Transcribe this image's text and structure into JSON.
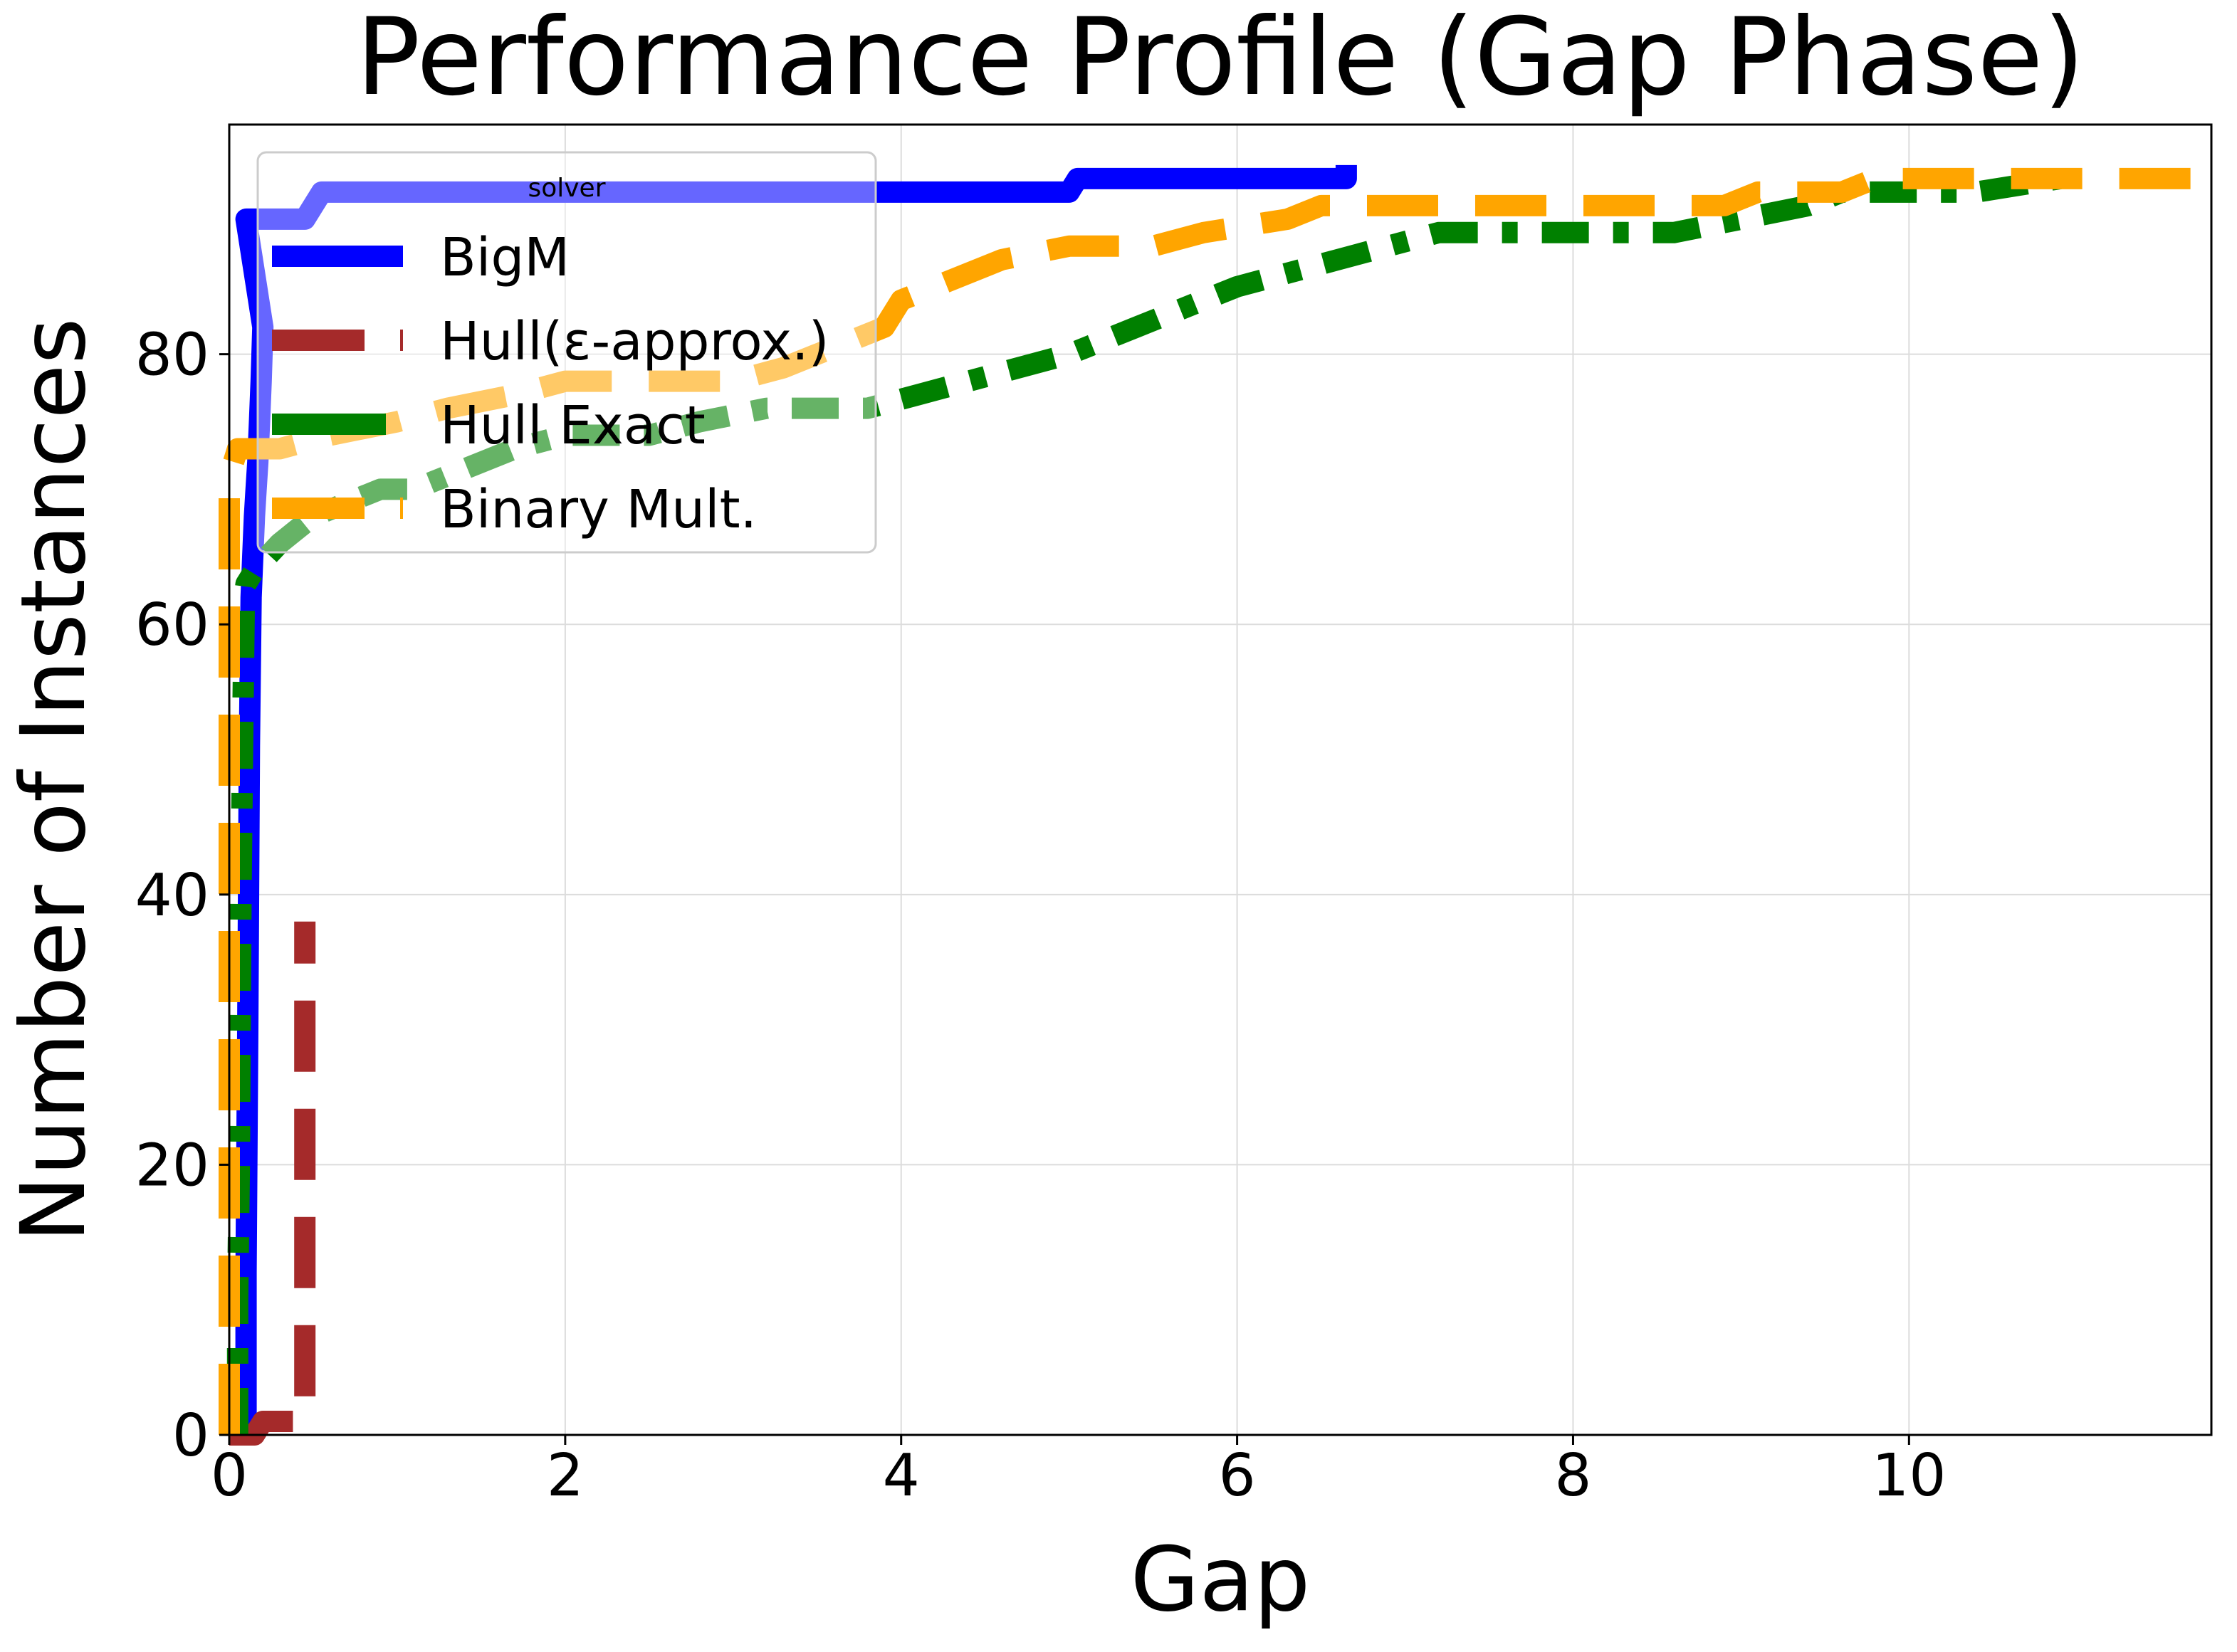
{
  "chart_data": {
    "type": "line",
    "title": "Performance Profile (Gap Phase)",
    "xlabel": "Gap",
    "ylabel": "Number of Instances",
    "xlim": [
      0,
      11.8
    ],
    "ylim": [
      0,
      97
    ],
    "xticks": [
      0,
      2,
      4,
      6,
      8,
      10
    ],
    "yticks": [
      0,
      20,
      40,
      60,
      80
    ],
    "grid": true,
    "legend": {
      "title": "solver",
      "placement": "top-left"
    },
    "series": [
      {
        "name": "BigM",
        "color": "#0000ff",
        "style": "solid",
        "points": [
          [
            0.1,
            0
          ],
          [
            0.1,
            12
          ],
          [
            0.11,
            30
          ],
          [
            0.12,
            51
          ],
          [
            0.13,
            62
          ],
          [
            0.14,
            65
          ],
          [
            0.15,
            68
          ],
          [
            0.16,
            70
          ],
          [
            0.17,
            72
          ],
          [
            0.18,
            75
          ],
          [
            0.19,
            78
          ],
          [
            0.2,
            82
          ],
          [
            0.1,
            90
          ],
          [
            0.45,
            90
          ],
          [
            0.5,
            91
          ],
          [
            0.55,
            92
          ],
          [
            5.0,
            92
          ],
          [
            5.05,
            93
          ],
          [
            6.65,
            93
          ],
          [
            6.65,
            94
          ]
        ]
      },
      {
        "name": "Hull(ε-approx.)",
        "color": "#a52a2a",
        "style": "dashed",
        "points": [
          [
            0.0,
            0
          ],
          [
            0.15,
            0
          ],
          [
            0.2,
            1
          ],
          [
            0.45,
            1
          ],
          [
            0.45,
            38
          ]
        ]
      },
      {
        "name": "Hull Exact",
        "color": "#008000",
        "style": "dashdot",
        "points": [
          [
            0.05,
            0
          ],
          [
            0.05,
            10
          ],
          [
            0.06,
            20
          ],
          [
            0.07,
            40
          ],
          [
            0.08,
            52
          ],
          [
            0.09,
            62
          ],
          [
            0.1,
            63
          ],
          [
            0.15,
            64
          ],
          [
            0.3,
            66
          ],
          [
            0.5,
            68
          ],
          [
            0.7,
            69
          ],
          [
            0.9,
            70
          ],
          [
            1.1,
            70
          ],
          [
            1.3,
            71
          ],
          [
            1.7,
            73
          ],
          [
            2.0,
            74
          ],
          [
            2.5,
            74
          ],
          [
            2.8,
            75
          ],
          [
            3.2,
            76
          ],
          [
            3.8,
            76
          ],
          [
            4.1,
            77
          ],
          [
            4.4,
            78
          ],
          [
            4.7,
            79
          ],
          [
            5.0,
            80
          ],
          [
            5.2,
            81
          ],
          [
            5.4,
            82
          ],
          [
            5.6,
            83
          ],
          [
            5.8,
            84
          ],
          [
            6.0,
            85
          ],
          [
            6.3,
            86
          ],
          [
            6.6,
            87
          ],
          [
            6.9,
            88
          ],
          [
            7.2,
            89
          ],
          [
            8.6,
            89
          ],
          [
            9.0,
            90
          ],
          [
            9.4,
            91
          ],
          [
            9.6,
            92
          ],
          [
            10.4,
            92
          ],
          [
            10.9,
            93
          ]
        ]
      },
      {
        "name": "Binary Mult.",
        "color": "#ffa500",
        "style": "dashed",
        "points": [
          [
            0.0,
            0
          ],
          [
            0.0,
            71
          ],
          [
            0.05,
            73
          ],
          [
            0.3,
            73
          ],
          [
            0.6,
            74
          ],
          [
            1.0,
            75
          ],
          [
            1.3,
            76
          ],
          [
            1.7,
            77
          ],
          [
            2.0,
            78
          ],
          [
            3.0,
            78
          ],
          [
            3.3,
            79
          ],
          [
            3.5,
            80
          ],
          [
            3.7,
            81
          ],
          [
            3.9,
            82
          ],
          [
            4.0,
            84
          ],
          [
            4.2,
            85
          ],
          [
            4.4,
            86
          ],
          [
            4.6,
            87
          ],
          [
            5.0,
            88
          ],
          [
            5.5,
            88
          ],
          [
            5.8,
            89
          ],
          [
            6.3,
            90
          ],
          [
            6.5,
            91
          ],
          [
            8.6,
            91
          ],
          [
            8.9,
            91
          ],
          [
            9.1,
            92
          ],
          [
            9.6,
            92
          ],
          [
            9.8,
            93
          ],
          [
            11.8,
            93
          ]
        ]
      }
    ]
  }
}
